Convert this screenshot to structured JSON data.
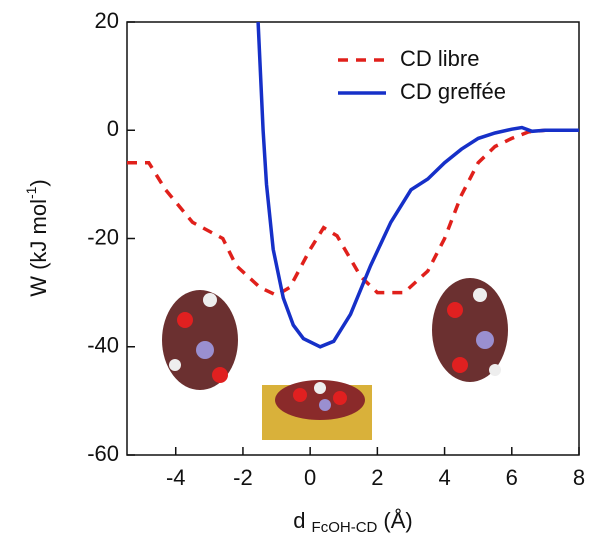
{
  "chart_data": {
    "type": "line",
    "ylabel": {
      "main": "W (kJ mol",
      "sup": "-1",
      "end": ")"
    },
    "xlabel": {
      "main": "d",
      "sub": "FcOH-CD",
      "unit": "(Å)"
    },
    "xlim": [
      -5.45,
      8
    ],
    "ylim": [
      -60,
      20
    ],
    "xticks": [
      -4,
      -2,
      0,
      2,
      4,
      6,
      8
    ],
    "yticks": [
      -60,
      -40,
      -20,
      0,
      20
    ],
    "legend": "upper right",
    "series": [
      {
        "name": "CD libre",
        "color": "#e0201b",
        "dash": true,
        "x": [
          -5.45,
          -4.8,
          -4.3,
          -3.5,
          -2.6,
          -2.2,
          -1.5,
          -1,
          -0.6,
          0,
          0.4,
          0.8,
          1.5,
          2,
          2.8,
          3.5,
          4,
          4.5,
          5,
          5.5,
          6,
          6.5,
          7,
          8
        ],
        "values": [
          -6,
          -6,
          -11,
          -17,
          -20,
          -25,
          -29,
          -30.5,
          -29,
          -22,
          -18,
          -19.5,
          -27,
          -30,
          -30,
          -26,
          -20,
          -12,
          -6,
          -3,
          -1.5,
          -0.3,
          0,
          0
        ]
      },
      {
        "name": "CD greffée",
        "color": "#1630c8",
        "dash": false,
        "x": [
          -1.55,
          -1.4,
          -1.3,
          -1.1,
          -0.8,
          -0.5,
          -0.2,
          0.3,
          0.7,
          1.2,
          1.8,
          2.4,
          3,
          3.5,
          4,
          4.5,
          5,
          5.5,
          6,
          6.3,
          6.6,
          7,
          8
        ],
        "values": [
          20,
          0,
          -10,
          -22,
          -31,
          -36,
          -38.5,
          -40,
          -39,
          -34,
          -25,
          -17,
          -11,
          -9,
          -6,
          -3.5,
          -1.5,
          -0.5,
          0.2,
          0.5,
          -0.2,
          0,
          0
        ]
      }
    ]
  }
}
